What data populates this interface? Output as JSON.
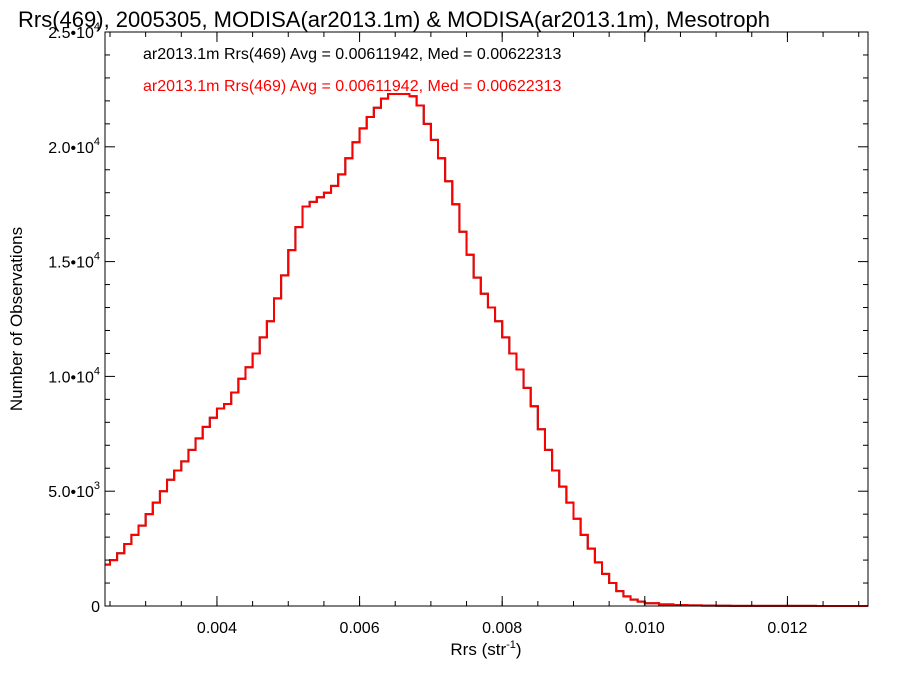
{
  "chart_data": {
    "type": "histogram-step",
    "title": "Rrs(469), 2005305, MODISA(ar2013.1m) & MODISA(ar2013.1m), Mesotroph",
    "xlabel": "Rrs (str",
    "xlabel_sup": "-1",
    "xlabel_end": ")",
    "ylabel": "Number of Observations",
    "xlim": [
      0.00243,
      0.01313
    ],
    "ylim": [
      0,
      25000
    ],
    "x_ticks": [
      {
        "value": 0.004,
        "label": "0.004"
      },
      {
        "value": 0.006,
        "label": "0.006"
      },
      {
        "value": 0.008,
        "label": "0.008"
      },
      {
        "value": 0.01,
        "label": "0.010"
      },
      {
        "value": 0.012,
        "label": "0.012"
      }
    ],
    "y_ticks": [
      {
        "value": 0,
        "label": "0",
        "sup": ""
      },
      {
        "value": 5000,
        "label": "5.0•10",
        "sup": "3"
      },
      {
        "value": 10000,
        "label": "1.0•10",
        "sup": "4"
      },
      {
        "value": 15000,
        "label": "1.5•10",
        "sup": "4"
      },
      {
        "value": 20000,
        "label": "2.0•10",
        "sup": "4"
      },
      {
        "value": 25000,
        "label": "2.5•10",
        "sup": "4"
      }
    ],
    "legend": [
      {
        "text": "ar2013.1m Rrs(469) Avg = 0.00611942, Med = 0.00622313",
        "color": "#000000"
      },
      {
        "text": "ar2013.1m Rrs(469) Avg = 0.00611942, Med = 0.00622313",
        "color": "#ff0000"
      }
    ],
    "series": [
      {
        "color": "#000000",
        "x": [
          0.00243,
          0.0025,
          0.0026,
          0.0027,
          0.0028,
          0.0029,
          0.003,
          0.0031,
          0.0032,
          0.0033,
          0.0034,
          0.0035,
          0.0036,
          0.0037,
          0.0038,
          0.0039,
          0.004,
          0.0041,
          0.0042,
          0.0043,
          0.0044,
          0.0045,
          0.0046,
          0.0047,
          0.0048,
          0.0049,
          0.005,
          0.0051,
          0.0052,
          0.0053,
          0.0054,
          0.0055,
          0.0056,
          0.0057,
          0.0058,
          0.0059,
          0.006,
          0.0061,
          0.0062,
          0.0063,
          0.0064,
          0.0065,
          0.0066,
          0.0067,
          0.0068,
          0.0069,
          0.007,
          0.0071,
          0.0072,
          0.0073,
          0.0074,
          0.0075,
          0.0076,
          0.0077,
          0.0078,
          0.0079,
          0.008,
          0.0081,
          0.0082,
          0.0083,
          0.0084,
          0.0085,
          0.0086,
          0.0087,
          0.0088,
          0.0089,
          0.009,
          0.0091,
          0.0092,
          0.0093,
          0.0094,
          0.0095,
          0.0096,
          0.0097,
          0.0098,
          0.0099,
          0.01,
          0.0102,
          0.0104,
          0.0106,
          0.0108,
          0.011,
          0.0112,
          0.0114,
          0.0116,
          0.0118,
          0.012,
          0.0122,
          0.0124,
          0.0126,
          0.0128,
          0.013,
          0.01313
        ],
        "values": [
          1800,
          2000,
          2300,
          2700,
          3100,
          3500,
          4000,
          4500,
          5000,
          5500,
          5900,
          6300,
          6800,
          7300,
          7800,
          8200,
          8600,
          8800,
          9300,
          9900,
          10400,
          11000,
          11700,
          12400,
          13400,
          14400,
          15500,
          16500,
          17400,
          17600,
          17800,
          18000,
          18300,
          18800,
          19500,
          20200,
          20800,
          21300,
          21700,
          22100,
          22300,
          22300,
          22300,
          22200,
          21800,
          21000,
          20300,
          19500,
          18500,
          17500,
          16300,
          15300,
          14300,
          13600,
          13000,
          12400,
          11700,
          11000,
          10300,
          9500,
          8700,
          7700,
          6800,
          5900,
          5200,
          4500,
          3800,
          3100,
          2500,
          1900,
          1400,
          1000,
          650,
          420,
          280,
          190,
          120,
          70,
          40,
          25,
          15,
          10,
          8,
          6,
          5,
          4,
          3,
          3,
          2,
          2,
          1,
          1,
          1
        ]
      },
      {
        "color": "#ff0000",
        "x": [
          0.00243,
          0.0025,
          0.0026,
          0.0027,
          0.0028,
          0.0029,
          0.003,
          0.0031,
          0.0032,
          0.0033,
          0.0034,
          0.0035,
          0.0036,
          0.0037,
          0.0038,
          0.0039,
          0.004,
          0.0041,
          0.0042,
          0.0043,
          0.0044,
          0.0045,
          0.0046,
          0.0047,
          0.0048,
          0.0049,
          0.005,
          0.0051,
          0.0052,
          0.0053,
          0.0054,
          0.0055,
          0.0056,
          0.0057,
          0.0058,
          0.0059,
          0.006,
          0.0061,
          0.0062,
          0.0063,
          0.0064,
          0.0065,
          0.0066,
          0.0067,
          0.0068,
          0.0069,
          0.007,
          0.0071,
          0.0072,
          0.0073,
          0.0074,
          0.0075,
          0.0076,
          0.0077,
          0.0078,
          0.0079,
          0.008,
          0.0081,
          0.0082,
          0.0083,
          0.0084,
          0.0085,
          0.0086,
          0.0087,
          0.0088,
          0.0089,
          0.009,
          0.0091,
          0.0092,
          0.0093,
          0.0094,
          0.0095,
          0.0096,
          0.0097,
          0.0098,
          0.0099,
          0.01,
          0.0102,
          0.0104,
          0.0106,
          0.0108,
          0.011,
          0.0112,
          0.0114,
          0.0116,
          0.0118,
          0.012,
          0.0122,
          0.0124,
          0.0126,
          0.0128,
          0.013,
          0.01313
        ],
        "values": [
          1800,
          2000,
          2300,
          2700,
          3100,
          3500,
          4000,
          4500,
          5000,
          5500,
          5900,
          6300,
          6800,
          7300,
          7800,
          8200,
          8600,
          8800,
          9300,
          9900,
          10400,
          11000,
          11700,
          12400,
          13400,
          14400,
          15500,
          16500,
          17400,
          17600,
          17800,
          18000,
          18300,
          18800,
          19500,
          20200,
          20800,
          21300,
          21700,
          22100,
          22300,
          22300,
          22300,
          22200,
          21800,
          21000,
          20300,
          19500,
          18500,
          17500,
          16300,
          15300,
          14300,
          13600,
          13000,
          12400,
          11700,
          11000,
          10300,
          9500,
          8700,
          7700,
          6800,
          5900,
          5200,
          4500,
          3800,
          3100,
          2500,
          1900,
          1400,
          1000,
          650,
          420,
          280,
          190,
          120,
          70,
          40,
          25,
          15,
          10,
          8,
          6,
          5,
          4,
          3,
          3,
          2,
          2,
          1,
          1,
          1
        ]
      }
    ]
  }
}
